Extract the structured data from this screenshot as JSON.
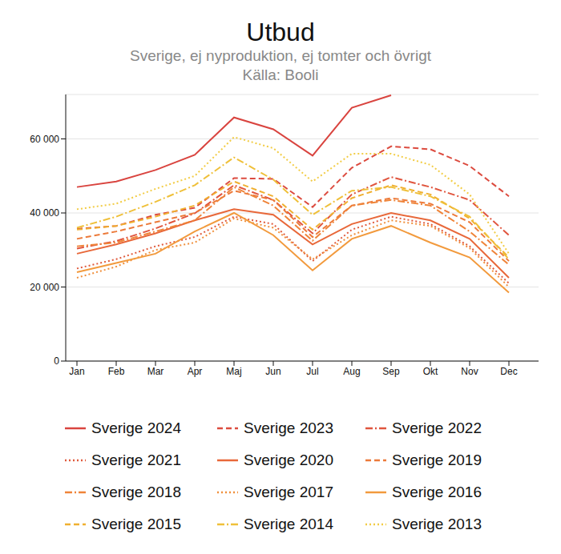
{
  "chart_data": {
    "type": "line",
    "title": "Utbud",
    "subtitle": "Sverige, ej nyproduktion, ej tomter och övrigt",
    "source": "Källa: Booli",
    "categories": [
      "Jan",
      "Feb",
      "Mar",
      "Apr",
      "Maj",
      "Jun",
      "Jul",
      "Aug",
      "Sep",
      "Okt",
      "Nov",
      "Dec"
    ],
    "ylim": [
      0,
      72000
    ],
    "yticks": [
      0,
      {
        "value": 20000,
        "label": "20 000"
      },
      {
        "value": 40000,
        "label": "40 000"
      },
      {
        "value": 60000,
        "label": "60 000"
      }
    ],
    "grid": true,
    "legend": "bottom",
    "series": [
      {
        "name": "Sverige 2024",
        "color": "#d9443f",
        "line_style": "solid",
        "values": [
          47000,
          48500,
          51600,
          55700,
          65800,
          62600,
          55500,
          68400,
          71800,
          null,
          null,
          null
        ]
      },
      {
        "name": "Sverige 2023",
        "color": "#dc4b3f",
        "line_style": "dashed",
        "values": [
          35700,
          36500,
          39500,
          41400,
          49400,
          49200,
          41600,
          52200,
          58000,
          57200,
          52700,
          44500
        ]
      },
      {
        "name": "Sverige 2022",
        "color": "#e0553e",
        "line_style": "dashdot",
        "values": [
          30400,
          32400,
          35800,
          39900,
          47500,
          43500,
          34500,
          45000,
          49700,
          47000,
          43500,
          34000
        ]
      },
      {
        "name": "Sverige 2021",
        "color": "#e05a3c",
        "line_style": "dotted",
        "values": [
          25000,
          27500,
          31000,
          33500,
          39000,
          37000,
          27000,
          35500,
          39000,
          37000,
          31000,
          21000
        ]
      },
      {
        "name": "Sverige 2020",
        "color": "#e8683a",
        "line_style": "solid",
        "values": [
          29000,
          31500,
          34500,
          38000,
          41000,
          39500,
          31500,
          37000,
          40000,
          38000,
          33000,
          22500
        ]
      },
      {
        "name": "Sverige 2019",
        "color": "#ec7a3a",
        "line_style": "dashed",
        "values": [
          33000,
          35000,
          37500,
          40000,
          46000,
          43500,
          33500,
          42000,
          44000,
          42500,
          37500,
          27000
        ]
      },
      {
        "name": "Sverige 2018",
        "color": "#ef8439",
        "line_style": "dashdot",
        "values": [
          31000,
          32000,
          35000,
          38000,
          47000,
          42000,
          32500,
          42000,
          43500,
          42000,
          35000,
          26000
        ]
      },
      {
        "name": "Sverige 2017",
        "color": "#f08f3b",
        "line_style": "dotted",
        "values": [
          22500,
          25500,
          30000,
          32000,
          38500,
          36000,
          27500,
          34000,
          38000,
          36500,
          30500,
          20000
        ]
      },
      {
        "name": "Sverige 2016",
        "color": "#f29a3d",
        "line_style": "solid",
        "values": [
          24000,
          26500,
          29000,
          35000,
          40000,
          34000,
          24500,
          33000,
          36500,
          32000,
          28000,
          18500
        ]
      },
      {
        "name": "Sverige 2015",
        "color": "#f0b030",
        "line_style": "dashed",
        "values": [
          35500,
          36500,
          39000,
          42000,
          48500,
          44500,
          35500,
          44000,
          47500,
          45000,
          38500,
          28000
        ]
      },
      {
        "name": "Sverige 2014",
        "color": "#efc03a",
        "line_style": "dashdot",
        "values": [
          36000,
          39000,
          43000,
          47500,
          55000,
          49000,
          39500,
          46000,
          47000,
          44500,
          39000,
          27500
        ]
      },
      {
        "name": "Sverige 2013",
        "color": "#f2cc45",
        "line_style": "dotted",
        "values": [
          41000,
          42500,
          46500,
          50000,
          60500,
          57500,
          48500,
          56000,
          56000,
          53000,
          45000,
          29000
        ]
      }
    ]
  }
}
